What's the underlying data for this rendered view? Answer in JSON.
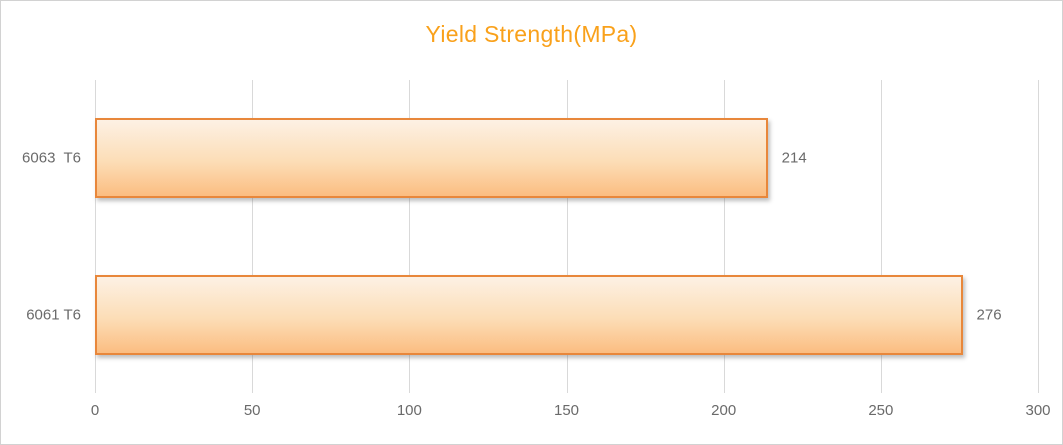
{
  "chart": {
    "colors": {
      "title": "#F9A11B",
      "bar_border": "#E8873B",
      "bar_fill_top": "#FDF1E4",
      "bar_fill_mid": "#FCDDB6",
      "bar_fill_bottom": "#FBBD81",
      "gridline": "#D9D9D9",
      "label_text": "#6A6A6A",
      "frame_border": "#D2D2D2"
    }
  },
  "chart_data": {
    "type": "bar",
    "orientation": "horizontal",
    "title": "Yield Strength(MPa)",
    "categories": [
      "6063  T6",
      "6061 T6"
    ],
    "values": [
      214,
      276
    ],
    "data_labels": [
      "214",
      "276"
    ],
    "xlabel": "",
    "ylabel": "",
    "xlim": [
      0,
      300
    ],
    "xticks": [
      0,
      50,
      100,
      150,
      200,
      250,
      300
    ],
    "grid": true,
    "legend": false
  }
}
